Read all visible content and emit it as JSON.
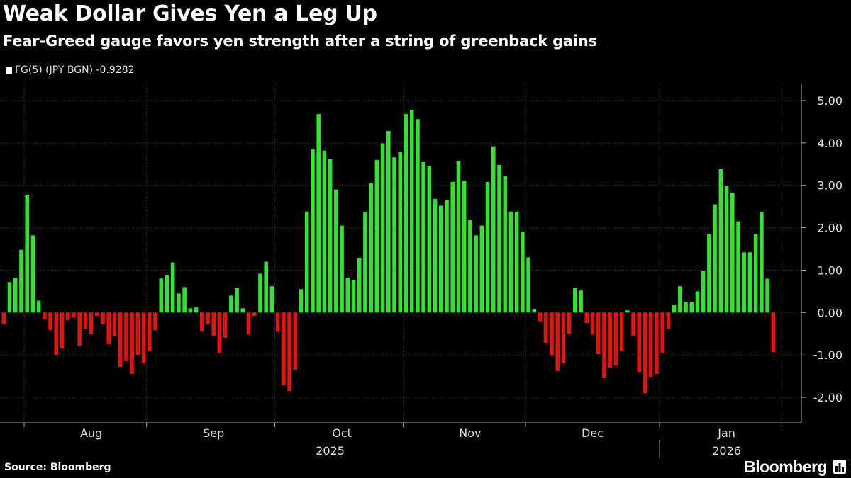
{
  "header": {
    "title": "Weak Dollar Gives Yen a Leg Up",
    "subtitle": "Fear-Greed gauge favors yen strength after a string of greenback gains"
  },
  "footer": {
    "source": "Source: Bloomberg",
    "brand": "Bloomberg"
  },
  "colors": {
    "positive": "#31e22f",
    "negative": "#e3140f",
    "background": "#000000",
    "grid": "#3a3a3a"
  },
  "chart_data": {
    "type": "bar",
    "title": "Weak Dollar Gives Yen a Leg Up",
    "subtitle": "Fear-Greed gauge favors yen strength after a string of greenback gains",
    "legend": [
      {
        "label": "FG(5) (JPY BGN) -0.9282"
      }
    ],
    "series_name": "FG(5) (JPY BGN)",
    "last_value": -0.9282,
    "ylim": [
      -2.6,
      5.4
    ],
    "yticks": [
      {
        "value": 5,
        "label": "5.00"
      },
      {
        "value": 4,
        "label": "4.00"
      },
      {
        "value": 3,
        "label": "3.00"
      },
      {
        "value": 2,
        "label": "2.00"
      },
      {
        "value": 1,
        "label": "1.00"
      },
      {
        "value": 0,
        "label": "0.00"
      },
      {
        "value": -1,
        "label": "-1.00"
      },
      {
        "value": -2,
        "label": "-2.00"
      }
    ],
    "x_month_labels": [
      {
        "label": "Aug",
        "index": 15
      },
      {
        "label": "Sep",
        "index": 36
      },
      {
        "label": "Oct",
        "index": 58
      },
      {
        "label": "Nov",
        "index": 80
      },
      {
        "label": "Dec",
        "index": 101
      },
      {
        "label": "Jan",
        "index": 124
      }
    ],
    "x_month_boundaries": [
      4,
      25,
      47,
      69,
      90,
      113,
      134
    ],
    "x_year_labels": [
      {
        "label": "2025",
        "index": 56
      },
      {
        "label": "2026",
        "index": 124
      }
    ],
    "x_year_boundary": 113,
    "values": [
      -0.28,
      0.72,
      0.82,
      1.48,
      2.78,
      1.82,
      0.28,
      -0.15,
      -0.42,
      -1.0,
      -0.85,
      -0.18,
      -0.12,
      -0.78,
      -0.38,
      -0.5,
      -0.08,
      -0.28,
      -0.75,
      -0.55,
      -1.28,
      -1.15,
      -1.45,
      -1.0,
      -1.2,
      -0.9,
      -0.42,
      0.8,
      0.88,
      1.18,
      0.45,
      0.6,
      0.1,
      0.12,
      -0.45,
      -0.28,
      -0.55,
      -0.95,
      -0.6,
      0.4,
      0.58,
      0.1,
      -0.52,
      -0.08,
      0.92,
      1.2,
      0.62,
      -0.45,
      -1.72,
      -1.85,
      -1.35,
      0.55,
      2.38,
      3.85,
      4.68,
      3.82,
      3.62,
      2.9,
      2.05,
      0.82,
      0.76,
      1.28,
      2.38,
      3.05,
      3.6,
      3.99,
      4.28,
      3.66,
      3.78,
      4.68,
      4.78,
      4.56,
      3.55,
      3.45,
      2.68,
      2.52,
      2.65,
      3.08,
      3.58,
      3.1,
      2.18,
      1.82,
      2.05,
      3.08,
      3.92,
      3.48,
      3.22,
      2.38,
      2.38,
      1.9,
      1.3,
      0.08,
      -0.22,
      -0.72,
      -1.02,
      -1.38,
      -1.2,
      -0.5,
      0.58,
      0.52,
      -0.25,
      -0.52,
      -0.98,
      -1.55,
      -1.3,
      -1.25,
      -0.9,
      0.05,
      -0.55,
      -1.4,
      -1.9,
      -1.52,
      -1.45,
      -0.95,
      -0.38,
      0.18,
      0.62,
      0.25,
      0.25,
      0.5,
      0.98,
      1.85,
      2.55,
      3.38,
      2.98,
      2.82,
      2.15,
      1.42,
      1.42,
      1.85,
      2.38,
      0.8,
      -0.93
    ]
  }
}
